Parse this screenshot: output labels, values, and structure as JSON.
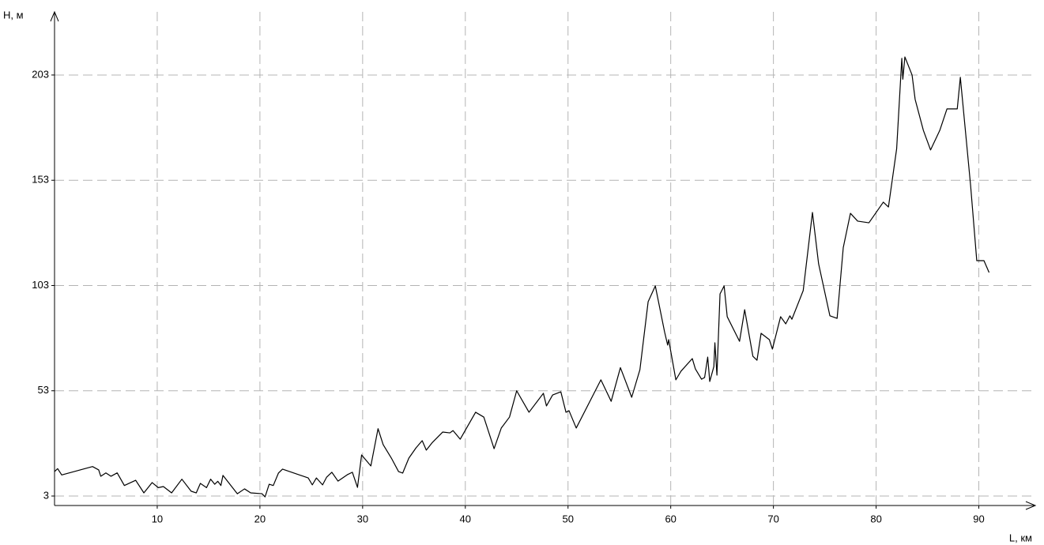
{
  "chart_data": {
    "type": "line",
    "y_label": "H, м",
    "x_label": "L, км",
    "color": "#000000",
    "grid": true,
    "xlim": [
      0,
      95.5
    ],
    "ylim": [
      -1.5,
      233
    ],
    "xticks": [
      10,
      20,
      30,
      40,
      50,
      60,
      70,
      80,
      90
    ],
    "yticks": [
      3,
      53,
      103,
      153,
      203
    ],
    "x": [
      0,
      0.3,
      0.7,
      3.7,
      4.3,
      4.5,
      5,
      5.5,
      6.1,
      6.8,
      7.9,
      8.7,
      9.5,
      10.1,
      10.6,
      11.4,
      12.4,
      13.3,
      13.8,
      14.2,
      14.8,
      15.2,
      15.6,
      15.9,
      16.2,
      16.4,
      17.8,
      18.5,
      19.1,
      20.2,
      20.5,
      20.9,
      21.3,
      21.8,
      22.2,
      24.7,
      25.1,
      25.5,
      26.1,
      26.5,
      27,
      27.6,
      28.5,
      29,
      29.5,
      29.9,
      30.8,
      31.5,
      32,
      32.8,
      33.5,
      33.9,
      34.5,
      35.2,
      35.8,
      36.2,
      36.8,
      37.8,
      38.5,
      38.8,
      39.5,
      41,
      41.8,
      42.8,
      43.5,
      44.3,
      45,
      46.2,
      47.6,
      47.9,
      48.5,
      49.3,
      49.8,
      50.1,
      50.8,
      53.2,
      54.2,
      55.1,
      56.2,
      57,
      57.8,
      58.5,
      59.4,
      59.7,
      59.8,
      60.5,
      61,
      62.1,
      62.4,
      63,
      63.3,
      63.6,
      63.8,
      64.2,
      64.3,
      64.5,
      64.8,
      65.2,
      65.5,
      66.7,
      67.2,
      68,
      68.4,
      68.8,
      69.6,
      69.9,
      70.7,
      71.2,
      71.6,
      71.8,
      72.9,
      73.8,
      74.4,
      75.5,
      76.2,
      76.8,
      77.5,
      78.2,
      79.3,
      80.7,
      81.2,
      82,
      82.5,
      82.6,
      82.8,
      83.5,
      83.8,
      84.6,
      85.3,
      86.2,
      86.9,
      87.9,
      88.2,
      89.2,
      89.8,
      90.5,
      91
    ],
    "values": [
      14.6,
      16,
      13,
      17,
      15.4,
      12.4,
      14,
      12.4,
      14,
      8,
      10.5,
      4.5,
      9.4,
      7,
      7.5,
      4.5,
      11,
      5.3,
      4.5,
      9,
      7,
      11,
      8.6,
      10,
      8,
      12.8,
      4.1,
      6.4,
      4.5,
      4.1,
      2.6,
      8.6,
      8,
      13.9,
      15.8,
      11.6,
      8.3,
      11.6,
      8.3,
      12,
      14.3,
      10.1,
      13.1,
      14.3,
      7.1,
      22.5,
      17.3,
      35,
      27.4,
      21,
      14.6,
      13.9,
      21,
      25.9,
      29.3,
      24.8,
      28.5,
      33.4,
      33,
      34.1,
      30,
      42.8,
      40.5,
      25.5,
      35.3,
      40.5,
      53,
      42.8,
      51.8,
      45.8,
      51,
      52.5,
      42.8,
      43.5,
      35.3,
      58.2,
      48,
      64,
      49.9,
      63,
      95.3,
      102.8,
      81,
      74.7,
      77.3,
      58.2,
      62.3,
      68.3,
      63.4,
      58.5,
      59.3,
      69,
      57.4,
      64.5,
      75.8,
      60.4,
      99,
      102.8,
      88.2,
      76.5,
      91.5,
      69.4,
      67.5,
      80.3,
      77.3,
      72.8,
      88.2,
      84.8,
      88.6,
      87,
      100.6,
      137.7,
      113.3,
      88.6,
      87.4,
      121,
      137.3,
      133.6,
      132.8,
      142.6,
      140.3,
      168,
      210.9,
      201,
      211.6,
      203,
      191.4,
      176.7,
      167.4,
      176.7,
      186.9,
      186.9,
      201.9,
      150.5,
      114.8,
      114.8,
      109.2
    ]
  }
}
